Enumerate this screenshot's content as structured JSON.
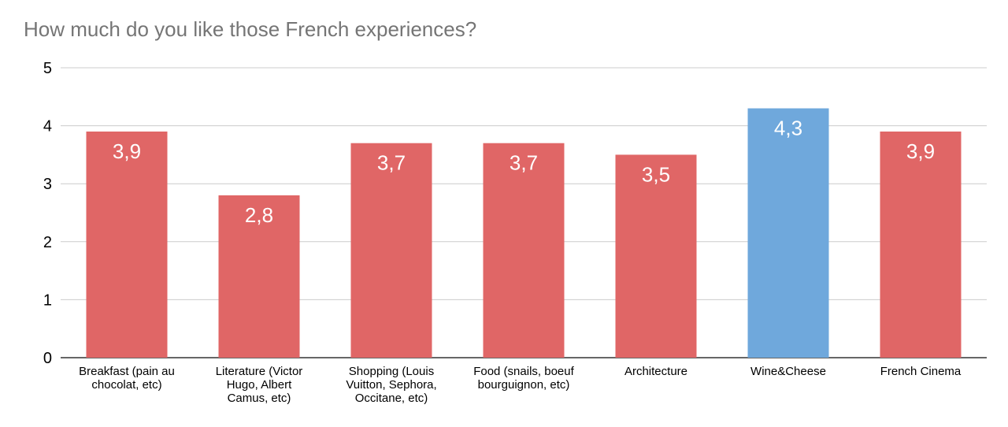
{
  "chart_data": {
    "type": "bar",
    "title": "How much do you like those French experiences?",
    "xlabel": "",
    "ylabel": "",
    "ylim": [
      0,
      5
    ],
    "yticks": [
      "0",
      "1",
      "2",
      "3",
      "4",
      "5"
    ],
    "grid": true,
    "legend": "none",
    "categories": [
      [
        "Breakfast (pain au",
        "chocolat, etc)"
      ],
      [
        "Literature (Victor",
        "Hugo, Albert",
        "Camus, etc)"
      ],
      [
        "Shopping (Louis",
        "Vuitton, Sephora,",
        "Occitane, etc)"
      ],
      [
        "Food (snails, boeuf",
        "bourguignon, etc)"
      ],
      [
        "Architecture"
      ],
      [
        "Wine&Cheese"
      ],
      [
        "French Cinema"
      ]
    ],
    "values": [
      3.9,
      2.8,
      3.7,
      3.7,
      3.5,
      4.3,
      3.9
    ],
    "data_labels": [
      "3,9",
      "2,8",
      "3,7",
      "3,7",
      "3,5",
      "4,3",
      "3,9"
    ],
    "bar_colors": [
      "#e06666",
      "#e06666",
      "#e06666",
      "#e06666",
      "#e06666",
      "#6fa8dc",
      "#e06666"
    ],
    "colors": {
      "grid": "#cccccc",
      "axis": "#333333",
      "label_text": "#ffffff",
      "tick_text": "#000000"
    }
  }
}
